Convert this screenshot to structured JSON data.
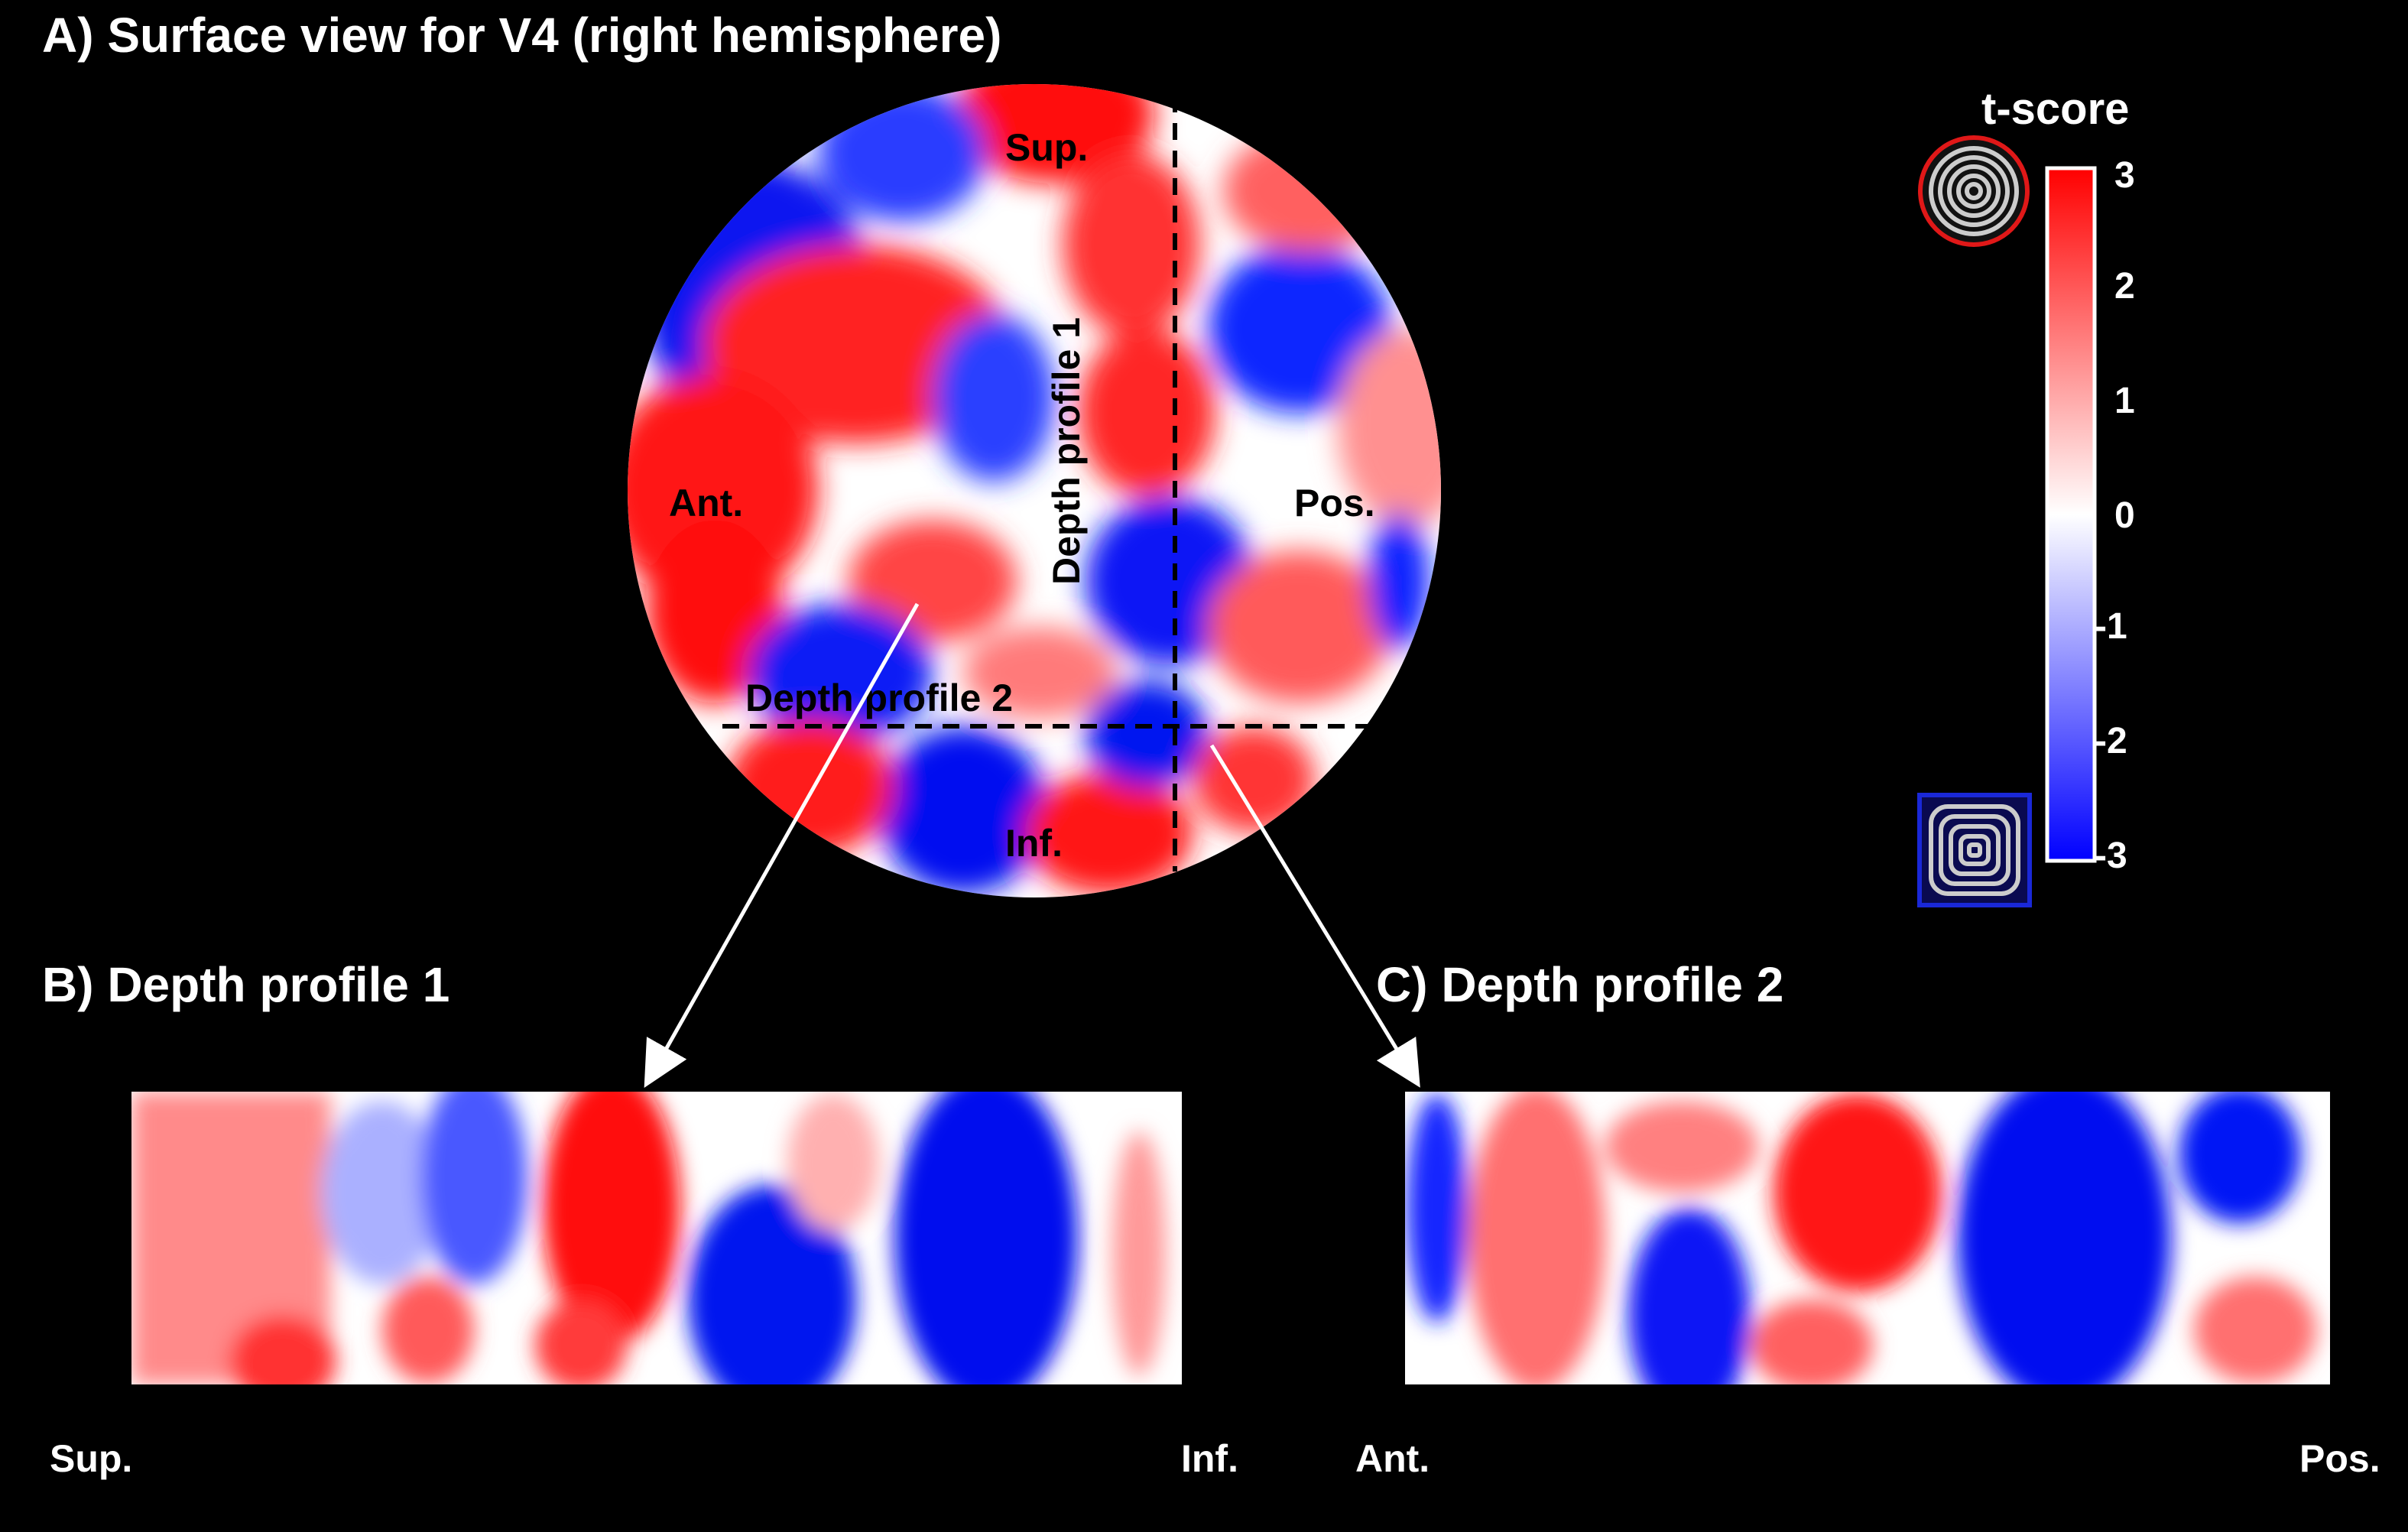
{
  "panels": {
    "a_title": "A) Surface view for V4 (right hemisphere)",
    "b_title": "B) Depth profile 1",
    "c_title": "C) Depth profile 2"
  },
  "surface": {
    "label_sup": "Sup.",
    "label_inf": "Inf.",
    "label_ant": "Ant.",
    "label_pos": "Pos.",
    "line1_label": "Depth profile 1",
    "line2_label": "Depth profile 2"
  },
  "profiles": {
    "p1_left": "Sup.",
    "p1_right": "Inf.",
    "p2_left": "Ant.",
    "p2_right": "Pos."
  },
  "colorbar": {
    "title": "t-score",
    "ticks": [
      "3",
      "2",
      "1",
      "0",
      "-1",
      "-2",
      "-3"
    ],
    "max": 3,
    "min": -3,
    "top_color": "#ff0000",
    "mid_color": "#ffffff",
    "bottom_color": "#0000ff",
    "top_icon": "concentric-circles-icon",
    "bottom_icon": "concentric-squares-icon"
  },
  "colors": {
    "background": "#000000",
    "red": "#ff0000",
    "blue": "#0000ff",
    "arrow": "#ffffff"
  }
}
